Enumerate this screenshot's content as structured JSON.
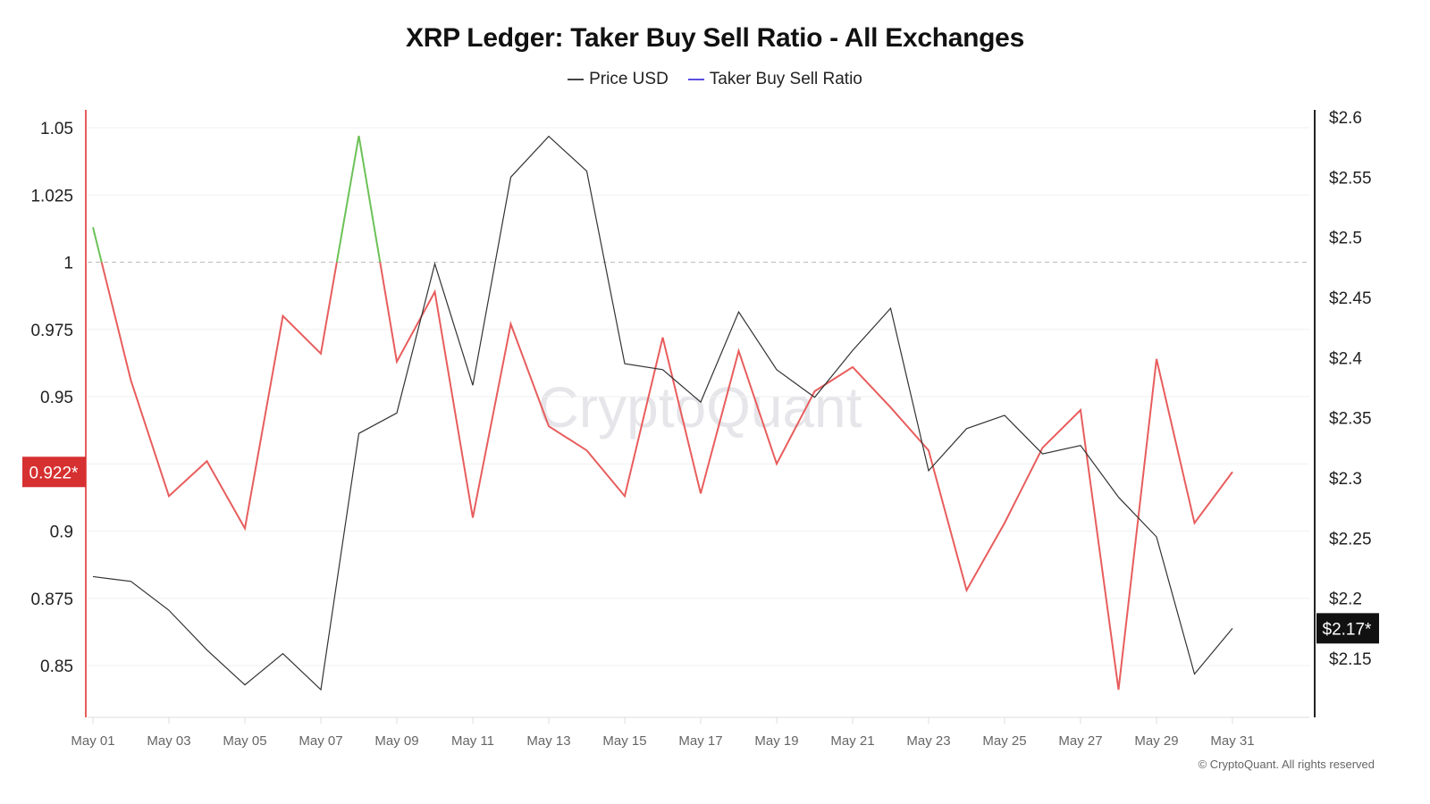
{
  "title": "XRP Ledger: Taker Buy Sell Ratio - All Exchanges",
  "legend": [
    {
      "label": "Price USD",
      "color": "#444444"
    },
    {
      "label": "Taker Buy Sell Ratio",
      "color": "#5b4ee0"
    }
  ],
  "watermark": "CryptoQuant",
  "credit": "© CryptoQuant. All rights reserved",
  "chart_data": {
    "type": "line",
    "title": "XRP Ledger: Taker Buy Sell Ratio - All Exchanges",
    "x": [
      "May 01",
      "May 02",
      "May 03",
      "May 04",
      "May 05",
      "May 06",
      "May 07",
      "May 08",
      "May 09",
      "May 10",
      "May 11",
      "May 12",
      "May 13",
      "May 14",
      "May 15",
      "May 16",
      "May 17",
      "May 18",
      "May 19",
      "May 20",
      "May 21",
      "May 22",
      "May 23",
      "May 24",
      "May 25",
      "May 26",
      "May 27",
      "May 28",
      "May 29",
      "May 30",
      "May 31"
    ],
    "x_tick_labels": [
      "May 01",
      "May 03",
      "May 05",
      "May 07",
      "May 09",
      "May 11",
      "May 13",
      "May 15",
      "May 17",
      "May 19",
      "May 21",
      "May 23",
      "May 25",
      "May 27",
      "May 29",
      "May 31"
    ],
    "left_axis": {
      "ticks": [
        "1.05",
        "1.025",
        "1",
        "0.975",
        "0.95",
        "0.925",
        "0.9",
        "0.875",
        "0.85"
      ],
      "ylim": [
        0.835,
        1.06
      ],
      "current_label": "0.922*",
      "current_value": 0.922,
      "current_color": "#d63030",
      "reference_line": 1
    },
    "right_axis": {
      "ticks": [
        "$2.6",
        "$2.55",
        "$2.5",
        "$2.45",
        "$2.4",
        "$2.35",
        "$2.3",
        "$2.25",
        "$2.2",
        "$2.15"
      ],
      "ylim": [
        2.1,
        2.609
      ],
      "current_label": "$2.17*",
      "current_value": 2.175
    },
    "grid": true,
    "legend_position": "top-center",
    "series": [
      {
        "name": "Taker Buy Sell Ratio",
        "axis": "left",
        "color_above_1": "#6cc257",
        "color_below_1": "#e85d5d",
        "values": [
          1.013,
          0.956,
          0.913,
          0.926,
          0.901,
          0.98,
          0.966,
          1.047,
          0.963,
          0.989,
          0.905,
          0.977,
          0.939,
          0.93,
          0.913,
          0.972,
          0.914,
          0.967,
          0.925,
          0.952,
          0.961,
          0.946,
          0.93,
          0.878,
          0.903,
          0.931,
          0.945,
          0.841,
          0.964,
          0.903,
          0.922
        ]
      },
      {
        "name": "Price USD",
        "axis": "right",
        "color": "#333333",
        "values": [
          2.218,
          2.214,
          2.19,
          2.157,
          2.128,
          2.154,
          2.124,
          2.337,
          2.354,
          2.478,
          2.377,
          2.55,
          2.584,
          2.555,
          2.395,
          2.39,
          2.363,
          2.438,
          2.39,
          2.367,
          2.406,
          2.441,
          2.306,
          2.341,
          2.352,
          2.32,
          2.327,
          2.284,
          2.251,
          2.137,
          2.175
        ]
      }
    ]
  }
}
